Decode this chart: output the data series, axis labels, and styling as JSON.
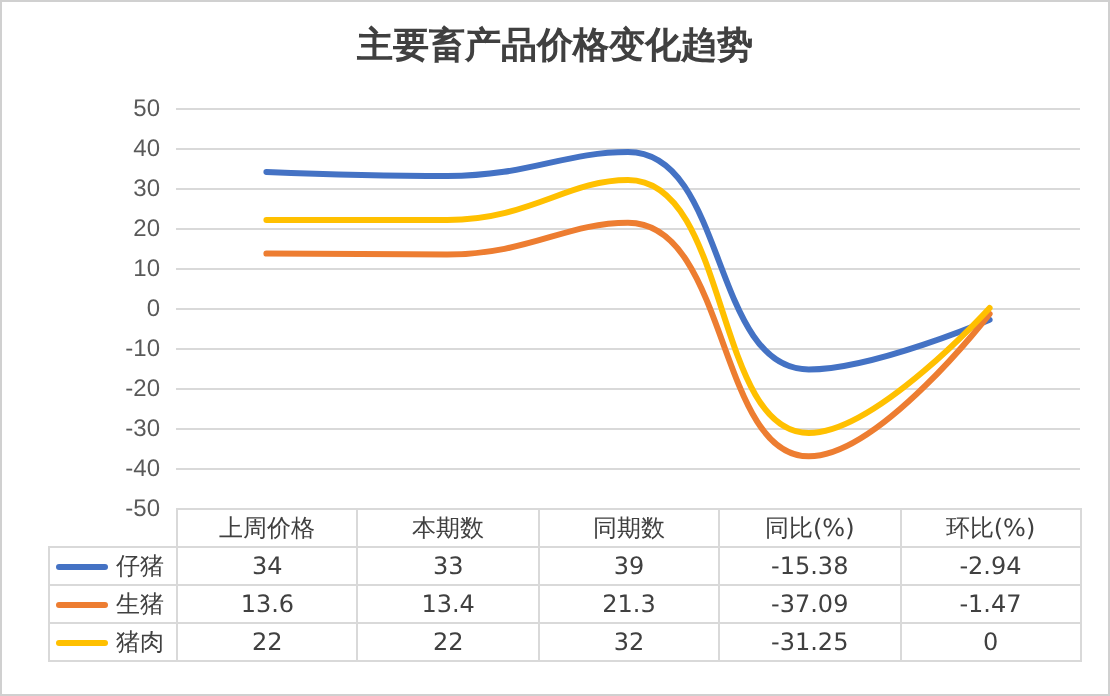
{
  "chart_data": {
    "type": "line",
    "title": "主要畜产品价格变化趋势",
    "categories": [
      "上周价格",
      "本期数",
      "同期数",
      "同比(%)",
      "环比(%)"
    ],
    "series": [
      {
        "name": "仔猪",
        "color": "#4472c4",
        "values": [
          34,
          33,
          39,
          -15.38,
          -2.94
        ]
      },
      {
        "name": "生猪",
        "color": "#ed7d31",
        "values": [
          13.6,
          13.4,
          21.3,
          -37.09,
          -1.47
        ]
      },
      {
        "name": "猪肉",
        "color": "#ffc000",
        "values": [
          22,
          22,
          32,
          -31.25,
          0
        ]
      }
    ],
    "ylim": [
      -50,
      50
    ],
    "yticks": [
      -50,
      -40,
      -30,
      -20,
      -10,
      0,
      10,
      20,
      30,
      40,
      50
    ],
    "grid": "y",
    "legend": "bottom",
    "data_labels": true,
    "marker": "none",
    "line_style": "solid"
  }
}
